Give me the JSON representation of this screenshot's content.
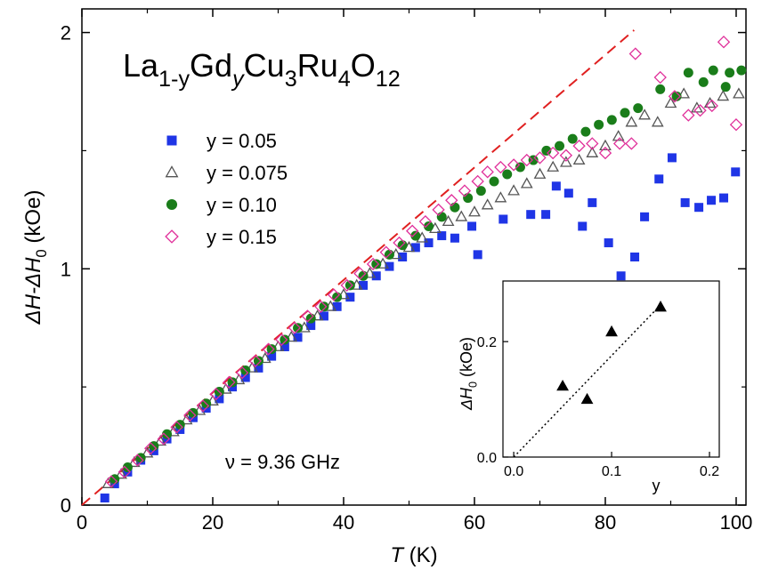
{
  "chart_data": [
    {
      "type": "scatter",
      "formula": [
        "La",
        "1-y",
        "Gd",
        "y",
        "Cu",
        "3",
        "Ru",
        "4",
        "O",
        "12"
      ],
      "xlabel": [
        "T",
        " (K)"
      ],
      "ylabel": [
        "ΔH-ΔH",
        "0",
        " (kOe)"
      ],
      "annotation": "ν = 9.36 GHz",
      "xlim": [
        0,
        101.5
      ],
      "ylim": [
        0,
        2.1
      ],
      "xticks": [
        0,
        20,
        40,
        60,
        80,
        100
      ],
      "yticks": [
        0,
        1,
        2
      ],
      "xminor": [
        10,
        30,
        50,
        70,
        90
      ],
      "yminor": [
        0.5,
        1.5
      ],
      "legend": "upper left",
      "reference_line": {
        "color": "#e02020",
        "style": "dashed",
        "x": [
          0,
          84.4
        ],
        "y": [
          0,
          2.01
        ]
      },
      "series": [
        {
          "name": "y = 0.05",
          "color": "#1f35e6",
          "marker": "square",
          "x": [
            3.5,
            5,
            7,
            9,
            11,
            13,
            15,
            17,
            19,
            21,
            23,
            25,
            27,
            29,
            31,
            33,
            35,
            37,
            39,
            41,
            43,
            45,
            47,
            49,
            51,
            53,
            55,
            57,
            59.6,
            60.5,
            64.4,
            68.6,
            70.9,
            72.5,
            74.4,
            76.5,
            78,
            80.5,
            82.4,
            84.5,
            86,
            88.2,
            90.2,
            92.2,
            94.3,
            96.2,
            98.1,
            99.9
          ],
          "values": [
            0.03,
            0.09,
            0.14,
            0.19,
            0.23,
            0.28,
            0.32,
            0.37,
            0.41,
            0.45,
            0.5,
            0.54,
            0.58,
            0.63,
            0.67,
            0.71,
            0.76,
            0.8,
            0.84,
            0.88,
            0.93,
            0.97,
            1.01,
            1.05,
            1.09,
            1.11,
            1.14,
            1.13,
            1.18,
            1.06,
            1.21,
            1.23,
            1.23,
            1.35,
            1.32,
            1.18,
            1.28,
            1.11,
            0.97,
            1.05,
            1.22,
            1.38,
            1.47,
            1.28,
            1.26,
            1.29,
            1.3,
            1.41
          ]
        },
        {
          "name": "y = 0.075",
          "color": "#555555",
          "marker": "triangle-open",
          "x": [
            4,
            6,
            8,
            10,
            12,
            14,
            16,
            18,
            20,
            22,
            24,
            26,
            28,
            30,
            32,
            34,
            36,
            38,
            40,
            42,
            44,
            46,
            48,
            50,
            52,
            54,
            56,
            58,
            60,
            62,
            64,
            66,
            68,
            70,
            72,
            74,
            76,
            78,
            80,
            82,
            84,
            86,
            88,
            90,
            92,
            94,
            96,
            98,
            100.4
          ],
          "values": [
            0.09,
            0.13,
            0.18,
            0.22,
            0.27,
            0.31,
            0.36,
            0.4,
            0.44,
            0.49,
            0.53,
            0.58,
            0.62,
            0.67,
            0.71,
            0.75,
            0.8,
            0.84,
            0.89,
            0.93,
            0.98,
            1.02,
            1.06,
            1.09,
            1.13,
            1.17,
            1.2,
            1.22,
            1.24,
            1.27,
            1.3,
            1.33,
            1.36,
            1.4,
            1.43,
            1.45,
            1.46,
            1.49,
            1.52,
            1.56,
            1.62,
            1.65,
            1.62,
            1.7,
            1.74,
            1.68,
            1.7,
            1.73,
            1.74
          ]
        },
        {
          "name": "y = 0.10",
          "color": "#1a7d1a",
          "marker": "circle",
          "x": [
            5,
            7,
            9,
            11,
            13,
            15,
            17,
            19,
            21,
            23,
            25,
            27,
            29,
            31,
            33,
            35,
            37,
            39,
            41,
            43,
            45,
            47,
            49,
            51,
            53,
            55,
            57,
            59,
            61,
            63,
            65,
            67,
            69,
            71,
            73,
            75,
            77,
            79,
            81,
            83,
            85,
            88.4,
            90.9,
            92.7,
            95,
            96.5,
            98.4,
            99,
            100.8
          ],
          "values": [
            0.11,
            0.16,
            0.2,
            0.25,
            0.3,
            0.34,
            0.39,
            0.43,
            0.48,
            0.52,
            0.57,
            0.61,
            0.66,
            0.7,
            0.75,
            0.79,
            0.84,
            0.88,
            0.93,
            0.97,
            1.02,
            1.06,
            1.1,
            1.14,
            1.18,
            1.22,
            1.26,
            1.3,
            1.33,
            1.37,
            1.4,
            1.43,
            1.46,
            1.5,
            1.52,
            1.55,
            1.58,
            1.61,
            1.63,
            1.66,
            1.68,
            1.76,
            1.73,
            1.83,
            1.79,
            1.84,
            1.77,
            1.83,
            1.84
          ]
        },
        {
          "name": "y = 0.15",
          "color": "#e0309a",
          "marker": "diamond-open",
          "x": [
            4.5,
            6.5,
            8.5,
            10.5,
            12.5,
            14.5,
            16.5,
            18.5,
            20.5,
            22.5,
            24.5,
            26.5,
            28.5,
            30.5,
            32.5,
            34.5,
            36.5,
            38.5,
            40.5,
            42.5,
            44.5,
            46.5,
            48.5,
            50.5,
            52.5,
            54.5,
            56.5,
            58.5,
            60.5,
            62,
            64,
            66,
            68,
            70,
            72,
            74,
            76,
            78,
            80,
            82.2,
            84,
            84.6,
            88.4,
            90.6,
            92.7,
            94.5,
            96.3,
            98.1,
            100
          ],
          "values": [
            0.1,
            0.14,
            0.19,
            0.24,
            0.28,
            0.33,
            0.38,
            0.42,
            0.47,
            0.52,
            0.56,
            0.61,
            0.66,
            0.7,
            0.75,
            0.8,
            0.84,
            0.89,
            0.93,
            0.98,
            1.02,
            1.07,
            1.11,
            1.16,
            1.2,
            1.25,
            1.29,
            1.33,
            1.37,
            1.41,
            1.43,
            1.44,
            1.46,
            1.47,
            1.49,
            1.48,
            1.52,
            1.53,
            1.49,
            1.53,
            1.53,
            1.91,
            1.81,
            1.73,
            1.65,
            1.67,
            1.69,
            1.96,
            1.61
          ]
        }
      ]
    },
    {
      "type": "scatter",
      "xlabel": "y",
      "ylabel": [
        "ΔH",
        "0",
        " (kOe)"
      ],
      "xlim": [
        -0.011,
        0.21
      ],
      "ylim": [
        0,
        0.305
      ],
      "xticks": [
        {
          "value": 0,
          "label": "0.0"
        },
        0.1,
        0.2
      ],
      "yticks": [
        {
          "value": 0,
          "label": "0.0"
        },
        0.2
      ],
      "fit_line": {
        "color": "#000000",
        "style": "dotted",
        "x": [
          0,
          0.148
        ],
        "y": [
          0,
          0.26
        ]
      },
      "series": [
        {
          "color": "#000000",
          "marker": "triangle",
          "x": [
            0.05,
            0.075,
            0.1,
            0.15
          ],
          "values": [
            0.123,
            0.1,
            0.217,
            0.26
          ]
        }
      ]
    }
  ]
}
